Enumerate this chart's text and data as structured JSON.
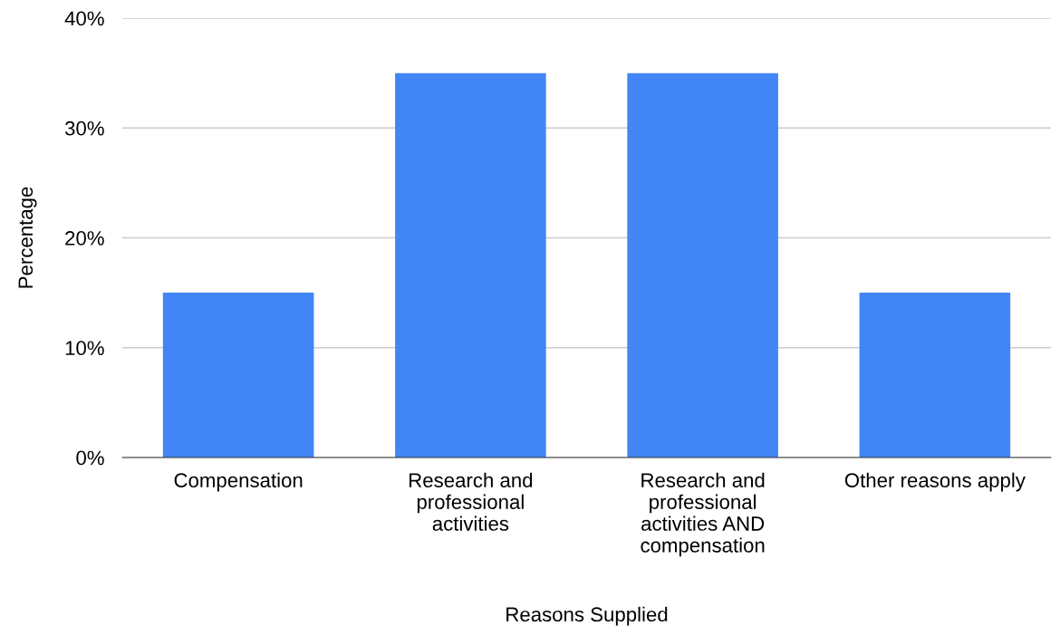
{
  "chart_data": {
    "type": "bar",
    "xlabel": "Reasons Supplied",
    "ylabel": "Percentage",
    "categories": [
      "Compensation",
      "Research and professional activities",
      "Research and professional activities AND compensation",
      "Other reasons apply"
    ],
    "values": [
      15,
      35,
      35,
      15
    ],
    "color": "#4285f4",
    "ylim": [
      0,
      40
    ],
    "yticks": [
      {
        "value": 0,
        "label": "0%"
      },
      {
        "value": 10,
        "label": "10%"
      },
      {
        "value": 20,
        "label": "20%"
      },
      {
        "value": 30,
        "label": "30%"
      },
      {
        "value": 40,
        "label": "40%"
      }
    ],
    "grid": "y",
    "legend": false
  }
}
